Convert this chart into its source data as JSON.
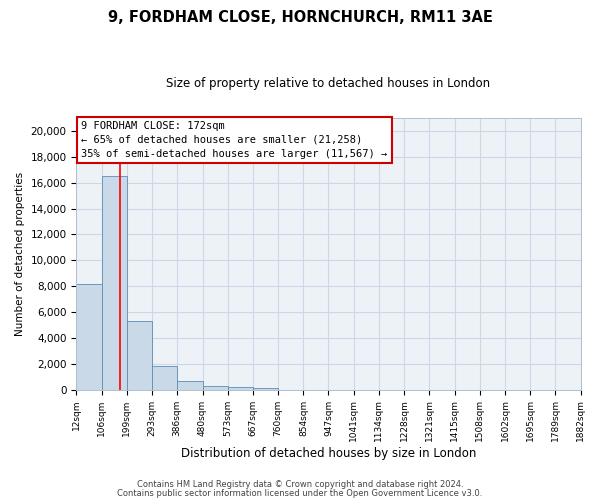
{
  "title": "9, FORDHAM CLOSE, HORNCHURCH, RM11 3AE",
  "subtitle": "Size of property relative to detached houses in London",
  "bar_values": [
    8200,
    16500,
    5300,
    1800,
    700,
    300,
    200,
    100,
    0,
    0,
    0,
    0,
    0,
    0,
    0,
    0,
    0,
    0,
    0,
    0
  ],
  "bin_edges": [
    12,
    106,
    199,
    293,
    386,
    480,
    573,
    667,
    760,
    854,
    947,
    1041,
    1134,
    1228,
    1321,
    1415,
    1508,
    1602,
    1695,
    1789,
    1882
  ],
  "bin_labels": [
    "12sqm",
    "106sqm",
    "199sqm",
    "293sqm",
    "386sqm",
    "480sqm",
    "573sqm",
    "667sqm",
    "760sqm",
    "854sqm",
    "947sqm",
    "1041sqm",
    "1134sqm",
    "1228sqm",
    "1321sqm",
    "1415sqm",
    "1508sqm",
    "1602sqm",
    "1695sqm",
    "1789sqm",
    "1882sqm"
  ],
  "bar_color": "#c9d9e8",
  "bar_edge_color": "#5b8db8",
  "red_line_x": 172,
  "property_size": 172,
  "property_label": "9 FORDHAM CLOSE: 172sqm",
  "pct_smaller": 65,
  "count_smaller": 21258,
  "pct_larger": 35,
  "count_larger": 11567,
  "xlabel": "Distribution of detached houses by size in London",
  "ylabel": "Number of detached properties",
  "ylim": [
    0,
    21000
  ],
  "yticks": [
    0,
    2000,
    4000,
    6000,
    8000,
    10000,
    12000,
    14000,
    16000,
    18000,
    20000
  ],
  "footer1": "Contains HM Land Registry data © Crown copyright and database right 2024.",
  "footer2": "Contains public sector information licensed under the Open Government Licence v3.0.",
  "annotation_box_color": "#ffffff",
  "annotation_box_edge": "#cc0000",
  "grid_color": "#ccd8e5",
  "bg_color": "#edf2f7"
}
